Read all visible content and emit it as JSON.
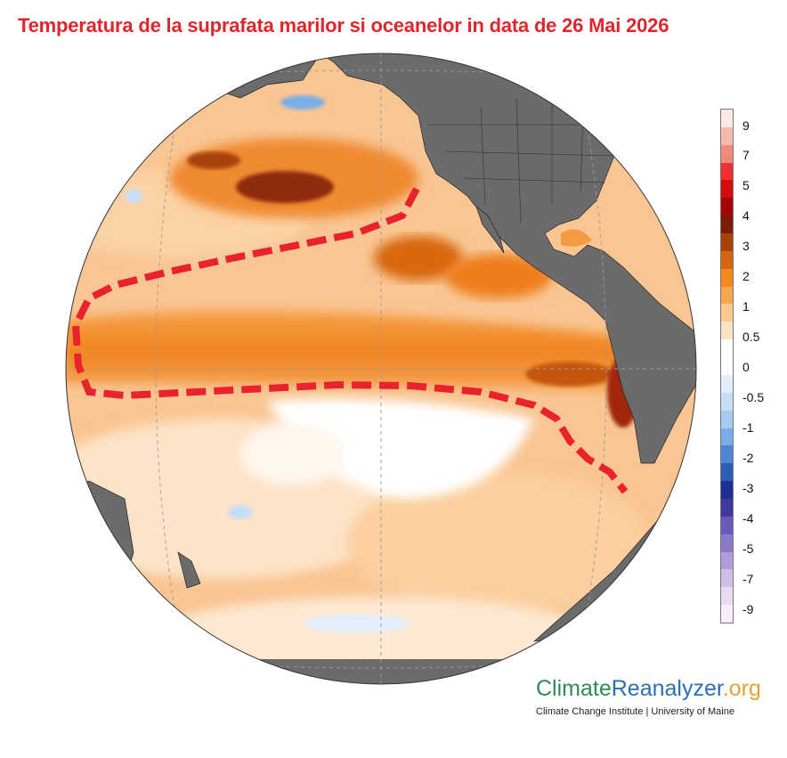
{
  "title": "Temperatura de la suprafata marilor si oceanelor in data de 26 Mai 2026",
  "colorbar": {
    "labels": [
      "9",
      "7",
      "5",
      "4",
      "3",
      "2",
      "1",
      "0.5",
      "0",
      "-0.5",
      "-1",
      "-2",
      "-3",
      "-4",
      "-5",
      "-7",
      "-9"
    ],
    "colors": [
      "#fde8e6",
      "#f7b9ae",
      "#f08a7c",
      "#ef3030",
      "#d50c0c",
      "#a30505",
      "#7a1d08",
      "#a8430b",
      "#d6660c",
      "#f4891d",
      "#f9a650",
      "#fbc88f",
      "#fde1c4",
      "#ffffff",
      "#ffffff",
      "#e3efff",
      "#c7def8",
      "#a6c9f0",
      "#7baee6",
      "#4e86d2",
      "#2e5db8",
      "#1b2f94",
      "#3e3a9e",
      "#6a5ab8",
      "#8c79c8",
      "#b19ddb",
      "#cfbde8",
      "#e7dbf3",
      "#f7eefa"
    ]
  },
  "brand": {
    "name_part1": "Climate",
    "name_part2": "Reanalyzer",
    "name_part3": ".org",
    "subtitle": "Climate Change Institute | University of Maine"
  },
  "colors": {
    "title": "#e0262c",
    "land": "#6b6b6b",
    "highlight": "#e8232d"
  }
}
